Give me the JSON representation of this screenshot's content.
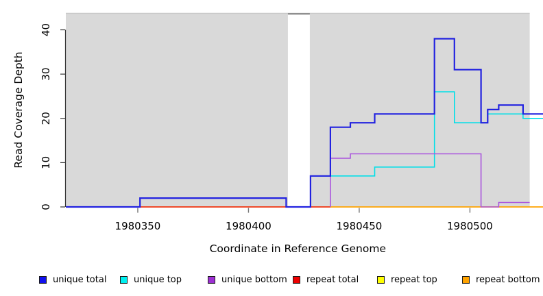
{
  "chart_data": {
    "type": "line",
    "subtype": "step-coverage-plot",
    "title": "",
    "xlabel": "Coordinate in Reference Genome",
    "ylabel": "Read Coverage Depth",
    "xlim": [
      1980317.5,
      1980533
    ],
    "ylim": [
      0,
      43.8
    ],
    "x_ticks": [
      "1980350",
      "1980400",
      "1980450",
      "1980500"
    ],
    "x_tick_values": [
      1980350,
      1980400,
      1980450,
      1980500
    ],
    "y_ticks": [
      "0",
      "10",
      "20",
      "30",
      "40"
    ],
    "y_tick_values": [
      0,
      10,
      20,
      30,
      40
    ],
    "grid": false,
    "plot_background_color": "#d9d9d9",
    "background_regions": [
      {
        "start": 1980317.5,
        "end": 1980417.8
      },
      {
        "start": 1980427.7,
        "end": 1980527
      }
    ],
    "masked_gap": {
      "start": 1980417.8,
      "end": 1980427.7,
      "marker_color": "#8f8f8f"
    },
    "top_border_color": "#c9c9c9",
    "series": [
      {
        "name": "repeat top",
        "color": "#ffff00",
        "width": 1.4,
        "points": [
          [
            1980317.5,
            0
          ],
          [
            1980437,
            0
          ]
        ]
      },
      {
        "name": "repeat total",
        "color": "#ee1111",
        "width": 1.4,
        "points": [
          [
            1980317.5,
            0
          ],
          [
            1980437,
            0
          ]
        ]
      },
      {
        "name": "repeat bottom",
        "color": "#ffa300",
        "width": 1.8,
        "points": [
          [
            1980437,
            0
          ],
          [
            1980533,
            0
          ]
        ]
      },
      {
        "name": "unique top",
        "color": "#00dfe8",
        "width": 1.6,
        "points": [
          [
            1980428,
            0
          ],
          [
            1980428,
            7
          ],
          [
            1980457,
            9
          ],
          [
            1980484,
            26
          ],
          [
            1980493,
            19
          ],
          [
            1980508,
            21
          ],
          [
            1980524,
            20
          ],
          [
            1980533,
            20
          ]
        ]
      },
      {
        "name": "unique bottom",
        "color": "#aa55dd",
        "width": 1.6,
        "points": [
          [
            1980437,
            0
          ],
          [
            1980437,
            11
          ],
          [
            1980446,
            12
          ],
          [
            1980505,
            0
          ],
          [
            1980513,
            1
          ],
          [
            1980527,
            1
          ]
        ]
      },
      {
        "name": "unique total",
        "color": "#2222e0",
        "width": 2.2,
        "points": [
          [
            1980317.5,
            0
          ],
          [
            1980351,
            2
          ],
          [
            1980417,
            0
          ],
          [
            1980428,
            7
          ],
          [
            1980437,
            18
          ],
          [
            1980446,
            19
          ],
          [
            1980457,
            21
          ],
          [
            1980484,
            38
          ],
          [
            1980493,
            31
          ],
          [
            1980505,
            19
          ],
          [
            1980508,
            22
          ],
          [
            1980513,
            23
          ],
          [
            1980524,
            21
          ],
          [
            1980533,
            21
          ]
        ]
      }
    ],
    "legend_position": "bottom"
  },
  "legend": {
    "items": [
      {
        "label": "unique total",
        "color": "#1111ee"
      },
      {
        "label": "unique top",
        "color": "#00f0f0"
      },
      {
        "label": "unique bottom",
        "color": "#9d2fd3"
      },
      {
        "label": "repeat total",
        "color": "#ee0000"
      },
      {
        "label": "repeat top",
        "color": "#ffff00"
      },
      {
        "label": "repeat bottom",
        "color": "#ffa300"
      }
    ]
  },
  "axes_text": {
    "x_title": "Coordinate in Reference Genome",
    "y_title": "Read Coverage Depth"
  }
}
